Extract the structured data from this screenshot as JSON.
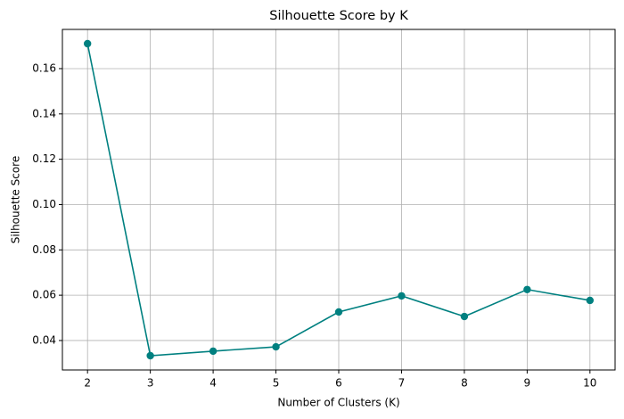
{
  "chart_data": {
    "type": "line",
    "title": "Silhouette Score by K",
    "x_label": "Number of Clusters (K)",
    "y_label": "Silhouette Score",
    "x": [
      2,
      3,
      4,
      5,
      6,
      7,
      8,
      9,
      10
    ],
    "series": [
      {
        "color": "#008080",
        "values": [
          0.171,
          0.0333,
          0.0353,
          0.0372,
          0.0526,
          0.0597,
          0.0506,
          0.0625,
          0.0577
        ]
      }
    ],
    "xlim": [
      1.6,
      10.4
    ],
    "xticks": [
      2,
      3,
      4,
      5,
      6,
      7,
      8,
      9,
      10
    ],
    "ylim": [
      0.027,
      0.1773
    ],
    "yticks": [
      0.04,
      0.06,
      0.08,
      {
        "value": 0.1,
        "label": "0.10"
      },
      0.12,
      0.14,
      0.16
    ],
    "grid": true,
    "marker": "circle"
  }
}
